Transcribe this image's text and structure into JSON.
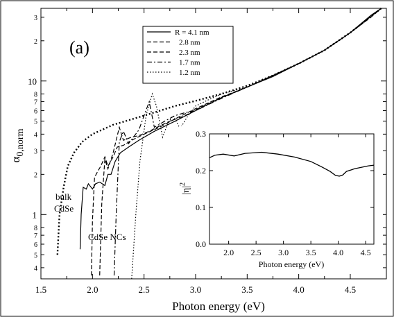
{
  "chart_data": [
    {
      "type": "line",
      "panel_label": "(a)",
      "xlabel": "Photon energy (eV)",
      "ylabel": "α0,norm",
      "ylabel_main": "α",
      "ylabel_sub": "0,norm",
      "xlim": [
        1.5,
        4.85
      ],
      "ylim": [
        0.33,
        35
      ],
      "yscale": "log",
      "x_ticks": [
        1.5,
        2.0,
        2.5,
        3.0,
        3.5,
        4.0,
        4.5
      ],
      "x_tick_labels": [
        "1.5",
        "2.0",
        "2.5",
        "3.0",
        "3.5",
        "4.0",
        "4.5"
      ],
      "y_major_ticks": [
        1,
        10
      ],
      "y_major_tick_labels": [
        "1",
        "10"
      ],
      "y_minor_ticks": [
        0.3,
        0.4,
        0.5,
        0.6,
        0.7,
        0.8,
        2,
        3,
        4,
        5,
        6,
        7,
        8,
        20,
        30
      ],
      "y_minor_tick_labels": [
        "3",
        "4",
        "5",
        "6",
        "7",
        "8",
        "2",
        "3",
        "4",
        "5",
        "6",
        "7",
        "8",
        "2",
        "3"
      ],
      "legend_position": "top-center",
      "annotations": [
        {
          "text": "bulk",
          "x": 1.58,
          "y": 1.35
        },
        {
          "text": "CdSe",
          "x": 1.58,
          "y": 1.05
        },
        {
          "text": "CdSe NCs",
          "x": 1.95,
          "y": 0.58
        }
      ],
      "series": [
        {
          "name": "R = 4.1 nm",
          "legend_label": "R = 4.1 nm",
          "style": "solid",
          "points": [
            [
              1.88,
              0.55
            ],
            [
              1.89,
              1.0
            ],
            [
              1.91,
              1.6
            ],
            [
              1.94,
              1.55
            ],
            [
              1.96,
              1.7
            ],
            [
              2.0,
              1.55
            ],
            [
              2.03,
              1.7
            ],
            [
              2.07,
              1.75
            ],
            [
              2.12,
              1.65
            ],
            [
              2.15,
              2.0
            ],
            [
              2.18,
              2.0
            ],
            [
              2.22,
              2.5
            ],
            [
              2.27,
              2.9
            ],
            [
              2.35,
              3.2
            ],
            [
              2.45,
              3.6
            ],
            [
              2.6,
              4.2
            ],
            [
              2.8,
              5.0
            ],
            [
              3.0,
              6.0
            ],
            [
              3.25,
              7.5
            ],
            [
              3.5,
              9.0
            ],
            [
              3.75,
              10.8
            ],
            [
              4.0,
              13.5
            ],
            [
              4.25,
              17.0
            ],
            [
              4.5,
              23.0
            ],
            [
              4.7,
              31.0
            ],
            [
              4.8,
              35.0
            ]
          ]
        },
        {
          "name": "2.8 nm",
          "legend_label": "2.8 nm",
          "style": "dashed",
          "points": [
            [
              1.99,
              0.35
            ],
            [
              2.0,
              0.9
            ],
            [
              2.02,
              1.9
            ],
            [
              2.05,
              2.1
            ],
            [
              2.08,
              2.3
            ],
            [
              2.12,
              2.7
            ],
            [
              2.15,
              2.3
            ],
            [
              2.2,
              2.7
            ],
            [
              2.24,
              3.2
            ],
            [
              2.3,
              3.3
            ],
            [
              2.38,
              3.6
            ],
            [
              2.5,
              4.0
            ],
            [
              2.65,
              4.5
            ],
            [
              2.8,
              5.2
            ],
            [
              3.0,
              6.2
            ],
            [
              3.25,
              7.6
            ],
            [
              3.5,
              9.0
            ],
            [
              3.75,
              11.0
            ],
            [
              4.0,
              13.5
            ],
            [
              4.25,
              17.0
            ],
            [
              4.5,
              23.0
            ],
            [
              4.7,
              30.0
            ],
            [
              4.8,
              35.0
            ]
          ]
        },
        {
          "name": "2.3 nm",
          "legend_label": "2.3 nm",
          "style": "dashed",
          "points": [
            [
              2.07,
              0.35
            ],
            [
              2.09,
              1.2
            ],
            [
              2.12,
              2.6
            ],
            [
              2.15,
              2.2
            ],
            [
              2.2,
              2.9
            ],
            [
              2.26,
              4.5
            ],
            [
              2.3,
              3.6
            ],
            [
              2.38,
              3.8
            ],
            [
              2.45,
              3.9
            ],
            [
              2.55,
              4.2
            ],
            [
              2.65,
              4.6
            ],
            [
              2.75,
              5.0
            ],
            [
              2.9,
              5.5
            ],
            [
              3.0,
              6.1
            ],
            [
              3.25,
              7.5
            ],
            [
              3.5,
              9.0
            ],
            [
              3.75,
              11.0
            ],
            [
              4.0,
              13.5
            ],
            [
              4.25,
              17.0
            ],
            [
              4.5,
              23.0
            ],
            [
              4.8,
              35.0
            ]
          ]
        },
        {
          "name": "1.7 nm",
          "legend_label": "1.7 nm",
          "style": "dashdot",
          "points": [
            [
              2.21,
              0.35
            ],
            [
              2.23,
              1.0
            ],
            [
              2.26,
              3.5
            ],
            [
              2.3,
              4.2
            ],
            [
              2.35,
              3.4
            ],
            [
              2.45,
              4.3
            ],
            [
              2.5,
              5.5
            ],
            [
              2.55,
              7.0
            ],
            [
              2.6,
              4.5
            ],
            [
              2.7,
              5.0
            ],
            [
              2.8,
              5.5
            ],
            [
              2.9,
              5.8
            ],
            [
              3.0,
              6.0
            ],
            [
              3.25,
              7.4
            ],
            [
              3.5,
              9.0
            ],
            [
              3.75,
              11.0
            ],
            [
              4.0,
              13.5
            ],
            [
              4.25,
              17.0
            ],
            [
              4.5,
              23.0
            ],
            [
              4.8,
              35.0
            ]
          ]
        },
        {
          "name": "1.2 nm",
          "legend_label": "1.2 nm",
          "style": "dotted",
          "points": [
            [
              2.38,
              0.33
            ],
            [
              2.42,
              1.0
            ],
            [
              2.46,
              2.5
            ],
            [
              2.52,
              5.5
            ],
            [
              2.58,
              8.0
            ],
            [
              2.62,
              6.5
            ],
            [
              2.68,
              3.8
            ],
            [
              2.73,
              4.8
            ],
            [
              2.78,
              5.5
            ],
            [
              2.85,
              4.4
            ],
            [
              2.92,
              5.4
            ],
            [
              3.0,
              6.5
            ],
            [
              3.12,
              7.2
            ],
            [
              3.25,
              8.0
            ],
            [
              3.5,
              9.0
            ],
            [
              3.75,
              11.0
            ],
            [
              4.0,
              13.5
            ],
            [
              4.25,
              17.0
            ],
            [
              4.5,
              23.0
            ],
            [
              4.8,
              35.0
            ]
          ]
        },
        {
          "name": "bulk CdSe",
          "style": "dotted-bold",
          "points": [
            [
              1.66,
              0.5
            ],
            [
              1.68,
              1.0
            ],
            [
              1.72,
              1.6
            ],
            [
              1.76,
              2.3
            ],
            [
              1.82,
              2.9
            ],
            [
              1.9,
              3.5
            ],
            [
              2.0,
              4.0
            ],
            [
              2.2,
              4.7
            ],
            [
              2.5,
              5.5
            ],
            [
              2.8,
              6.5
            ],
            [
              3.0,
              7.1
            ],
            [
              3.25,
              8.0
            ],
            [
              3.5,
              9.2
            ],
            [
              3.75,
              11.0
            ],
            [
              4.0,
              13.5
            ],
            [
              4.25,
              17.0
            ],
            [
              4.5,
              23.0
            ],
            [
              4.8,
              35.0
            ]
          ]
        }
      ]
    },
    {
      "type": "line",
      "inset": true,
      "xlabel": "Photon energy (eV)",
      "ylabel": "|η|2",
      "ylabel_main": "|η|",
      "ylabel_sup": "2",
      "xlim": [
        1.65,
        4.65
      ],
      "ylim": [
        0.0,
        0.3
      ],
      "x_ticks": [
        2.0,
        2.5,
        3.0,
        3.5,
        4.0,
        4.5
      ],
      "x_tick_labels": [
        "2.0",
        "2.5",
        "3.0",
        "3.5",
        "4.0",
        "4.5"
      ],
      "y_ticks": [
        0.0,
        0.1,
        0.2,
        0.3
      ],
      "y_tick_labels": [
        "0.0",
        "0.1",
        "0.2",
        "0.3"
      ],
      "series": [
        {
          "style": "solid",
          "points": [
            [
              1.65,
              0.235
            ],
            [
              1.75,
              0.242
            ],
            [
              1.9,
              0.245
            ],
            [
              2.1,
              0.24
            ],
            [
              2.3,
              0.247
            ],
            [
              2.6,
              0.25
            ],
            [
              2.9,
              0.245
            ],
            [
              3.2,
              0.237
            ],
            [
              3.5,
              0.225
            ],
            [
              3.7,
              0.21
            ],
            [
              3.85,
              0.198
            ],
            [
              3.95,
              0.187
            ],
            [
              4.02,
              0.185
            ],
            [
              4.08,
              0.188
            ],
            [
              4.15,
              0.198
            ],
            [
              4.3,
              0.205
            ],
            [
              4.45,
              0.21
            ],
            [
              4.55,
              0.213
            ],
            [
              4.65,
              0.215
            ]
          ]
        }
      ]
    }
  ]
}
